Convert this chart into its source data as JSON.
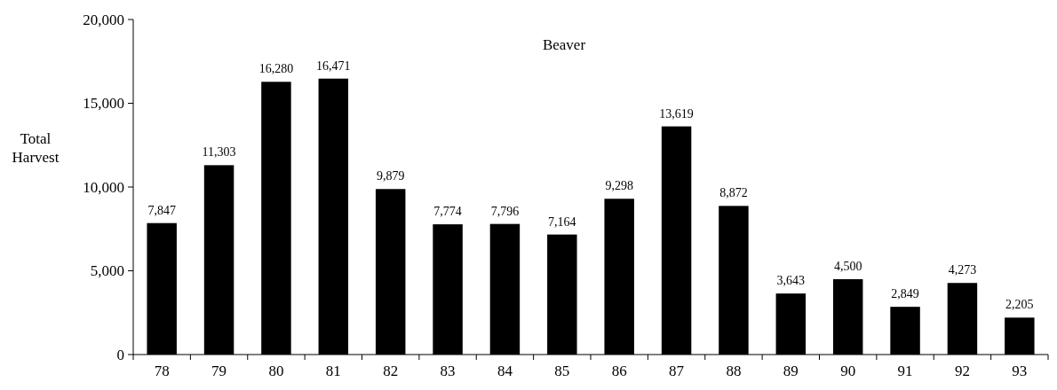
{
  "chart_data": {
    "type": "bar",
    "title": "Beaver",
    "ylabel": "Total Harvest",
    "categories": [
      "78",
      "79",
      "80",
      "81",
      "82",
      "83",
      "84",
      "85",
      "86",
      "87",
      "88",
      "89",
      "90",
      "91",
      "92",
      "93"
    ],
    "values": [
      7847,
      11303,
      16280,
      16471,
      9879,
      7774,
      7796,
      7164,
      9298,
      13619,
      8872,
      3643,
      4500,
      2849,
      4273,
      2205
    ],
    "value_labels": [
      "7,847",
      "11,303",
      "16,280",
      "16,471",
      "9,879",
      "7,774",
      "7,796",
      "7,164",
      "9,298",
      "13,619",
      "8,872",
      "3,643",
      "4,500",
      "2,849",
      "4,273",
      "2,205"
    ],
    "color": "#000000",
    "ylim": [
      0,
      20000
    ],
    "yticks": [
      {
        "value": 0,
        "label": "0"
      },
      {
        "value": 5000,
        "label": "5,000"
      },
      {
        "value": 10000,
        "label": "10,000"
      },
      {
        "value": 15000,
        "label": "15,000"
      },
      {
        "value": 20000,
        "label": "20,000"
      }
    ],
    "grid": false
  }
}
